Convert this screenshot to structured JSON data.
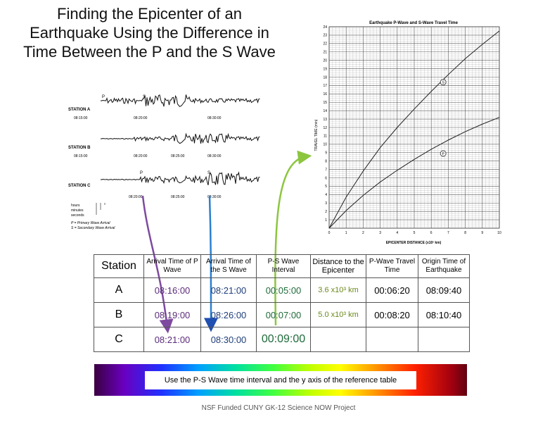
{
  "title": {
    "line1": "Finding the Epicenter of an",
    "line2": "Earthquake Using the Difference in",
    "line3": "Time Between the P and the S Wave"
  },
  "seismograms": {
    "stations": [
      {
        "label": "STATION A",
        "times": [
          "08:15:00",
          "08:20:00",
          "08:30:00"
        ]
      },
      {
        "label": "STATION B",
        "times": [
          "08:15:00",
          "08:20:00",
          "08:25:00",
          "08:30:00"
        ]
      },
      {
        "label": "STATION C",
        "times": [
          "08:20:00",
          "08:25:00",
          "08:30:00"
        ]
      }
    ],
    "marker_p": "P",
    "marker_s": "S",
    "legend": [
      "hours",
      "minutes",
      "seconds"
    ],
    "legend_p": "P = Primary Wave Arrival",
    "legend_s": "S = Secondary Wave Arrival"
  },
  "chart_data": {
    "type": "line",
    "title": "Earthquake P-Wave and S-Wave Travel Time",
    "xlabel": "EPICENTER DISTANCE (x10³ km)",
    "ylabel": "TRAVEL TIME (min)",
    "xlim": [
      0,
      10
    ],
    "ylim": [
      0,
      24
    ],
    "grid": true,
    "x_ticks": [
      0,
      1,
      2,
      3,
      4,
      5,
      6,
      7,
      8,
      9,
      10
    ],
    "y_ticks": [
      1,
      2,
      3,
      4,
      5,
      6,
      7,
      8,
      9,
      10,
      11,
      12,
      13,
      14,
      15,
      16,
      17,
      18,
      19,
      20,
      21,
      22,
      23,
      24
    ],
    "series": [
      {
        "name": "S",
        "x": [
          0,
          1,
          2,
          3,
          4,
          5,
          6,
          7,
          8,
          9,
          10
        ],
        "y": [
          0,
          3.7,
          6.8,
          9.6,
          12.0,
          14.2,
          16.3,
          18.3,
          20.2,
          21.9,
          23.5
        ]
      },
      {
        "name": "P",
        "x": [
          0,
          1,
          2,
          3,
          4,
          5,
          6,
          7,
          8,
          9,
          10
        ],
        "y": [
          0,
          2.1,
          3.9,
          5.5,
          6.9,
          8.2,
          9.4,
          10.5,
          11.5,
          12.4,
          13.2
        ]
      }
    ]
  },
  "table": {
    "headers": {
      "station": "Station",
      "p_arrival": "Arrival Time of P Wave",
      "s_arrival": "Arrival Time of the S Wave",
      "ps_interval": "P-S Wave Interval",
      "distance": "Distance to the Epicenter",
      "p_travel": "P-Wave Travel Time",
      "origin": "Origin Time of Earthquake"
    },
    "rows": [
      {
        "station": "A",
        "p_arrival": "08:16:00",
        "s_arrival": "08:21:00",
        "ps_interval": "00:05:00",
        "distance": "3.6 x10³ km",
        "p_travel": "00:06:20",
        "origin": "08:09:40"
      },
      {
        "station": "B",
        "p_arrival": "08:19:00",
        "s_arrival": "08:26:00",
        "ps_interval": "00:07:00",
        "distance": "5.0 x10³ km",
        "p_travel": "00:08:20",
        "origin": "08:10:40"
      },
      {
        "station": "C",
        "p_arrival": "08:21:00",
        "s_arrival": "08:30:00",
        "ps_interval": "00:09:00",
        "distance": "",
        "p_travel": "",
        "origin": ""
      }
    ]
  },
  "instruction": "Use the P-S Wave time interval and the y axis of the reference table",
  "footer": "NSF Funded CUNY GK-12 Science NOW Project",
  "colors": {
    "arrow_purple": "#7d4aa0",
    "arrow_blue": "#2a7fd0",
    "arrow_green": "#8cc63f",
    "arrow_blue_head": "#1f4fb0"
  }
}
